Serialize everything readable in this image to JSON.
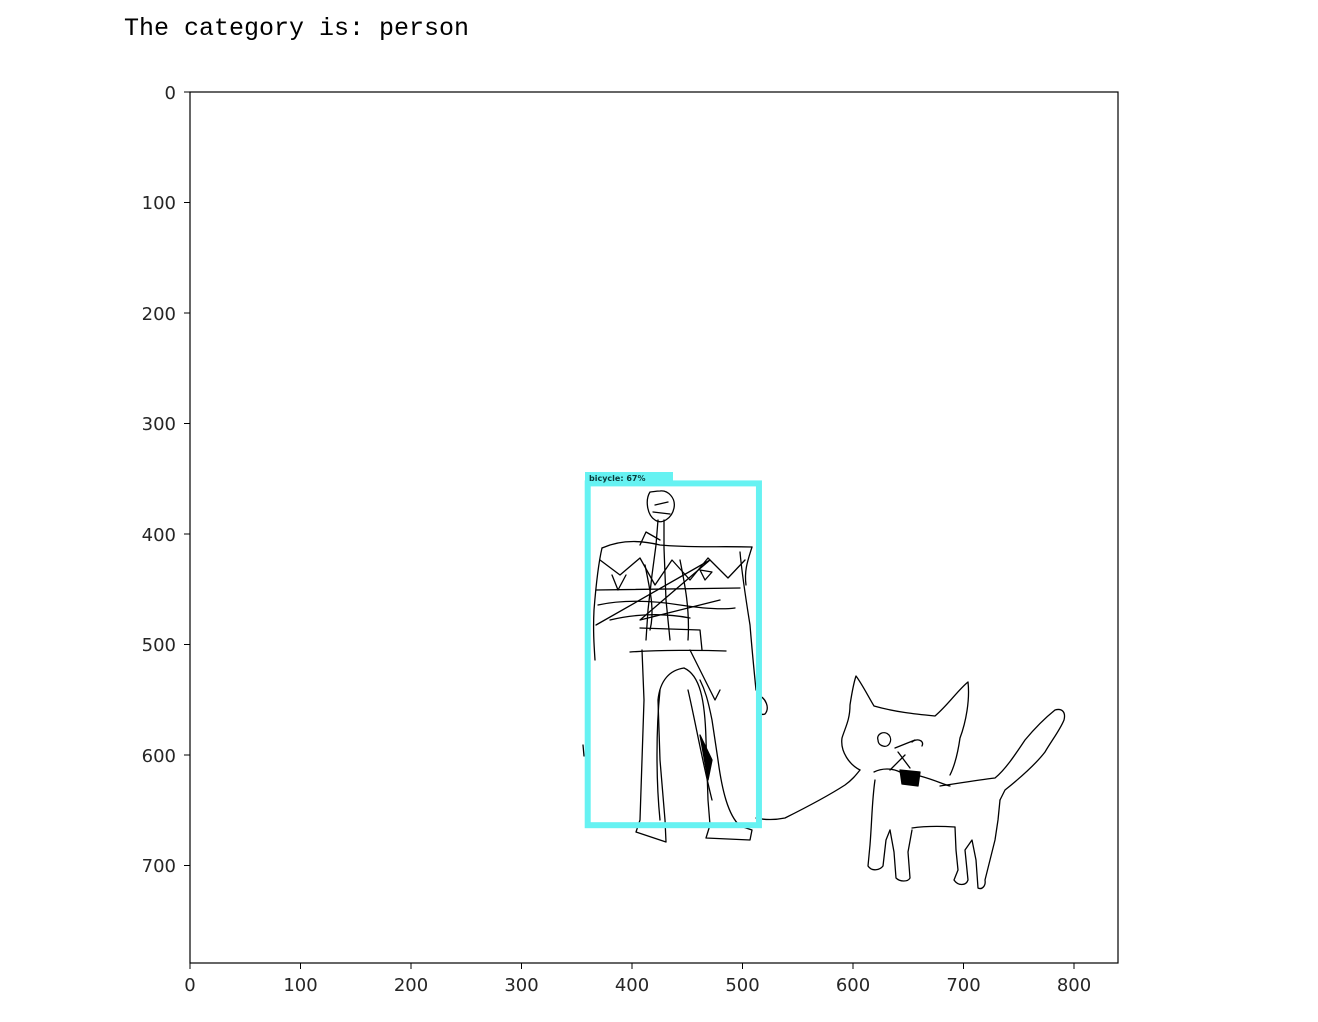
{
  "output": {
    "prefix": "The category is: ",
    "category": "person"
  },
  "plot": {
    "x_range": [
      0,
      840
    ],
    "y_range": [
      0,
      790
    ],
    "y_inverted": true,
    "x_ticks": [
      "0",
      "100",
      "200",
      "300",
      "400",
      "500",
      "600",
      "700",
      "800"
    ],
    "y_ticks": [
      "0",
      "100",
      "200",
      "300",
      "400",
      "500",
      "600",
      "700"
    ],
    "grid": false
  },
  "detection": {
    "label": "bicycle: 67%",
    "box": {
      "x_min": 360,
      "y_min": 355,
      "x_max": 515,
      "y_max": 665
    },
    "color": "#66f2f2"
  },
  "drawing": {
    "subjects": [
      "person-sketch",
      "cat-sketch"
    ],
    "stroke_color": "#000000"
  }
}
